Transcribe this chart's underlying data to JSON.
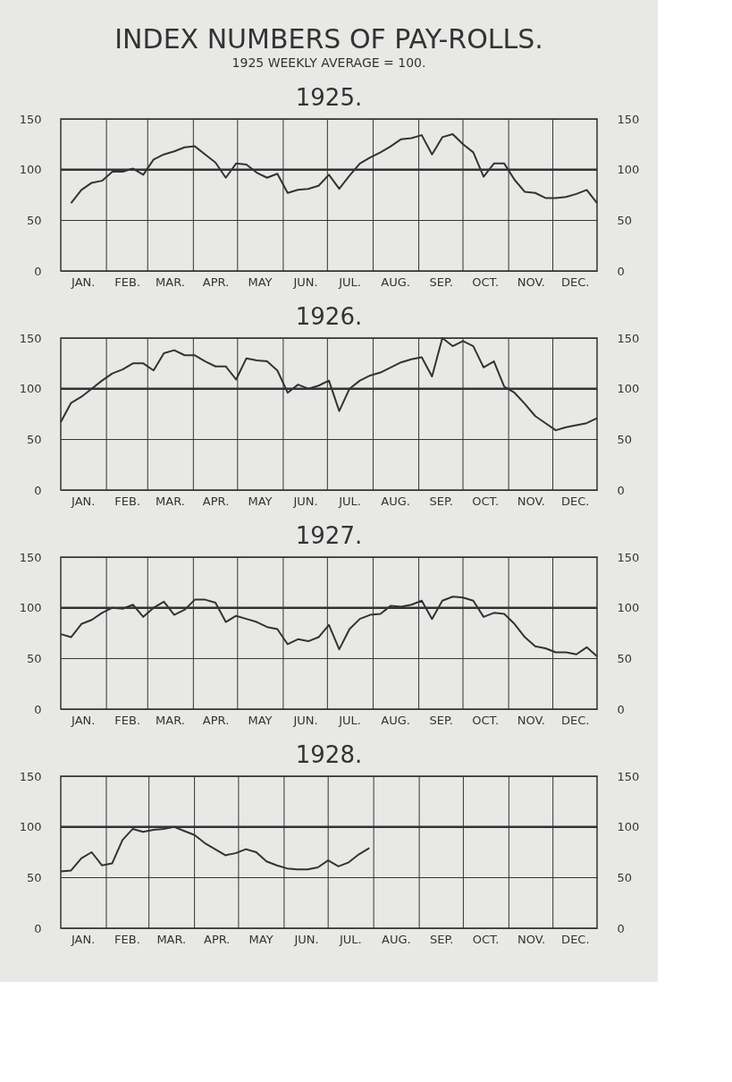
{
  "chart_data": [
    {
      "type": "other",
      "title": "INDEX NUMBERS OF PAY-ROLLS.",
      "subtitle": "1925 WEEKLY AVERAGE = 100."
    },
    {
      "type": "line",
      "title": "1925.",
      "series": [
        {
          "color": "#333333",
          "x": [
            "1925-01-08",
            "1925-01-15",
            "1925-01-22",
            "1925-01-29",
            "1925-02-05",
            "1925-02-12",
            "1925-02-19",
            "1925-02-26",
            "1925-03-05",
            "1925-03-12",
            "1925-03-19",
            "1925-03-26",
            "1925-04-02",
            "1925-04-09",
            "1925-04-16",
            "1925-04-23",
            "1925-04-30",
            "1925-05-07",
            "1925-05-14",
            "1925-05-21",
            "1925-05-28",
            "1925-06-04",
            "1925-06-11",
            "1925-06-18",
            "1925-06-25",
            "1925-07-02",
            "1925-07-09",
            "1925-07-16",
            "1925-07-23",
            "1925-07-30",
            "1925-08-06",
            "1925-08-13",
            "1925-08-20",
            "1925-08-27",
            "1925-09-03",
            "1925-09-10",
            "1925-09-17",
            "1925-09-24",
            "1925-10-01",
            "1925-10-08",
            "1925-10-15",
            "1925-10-22",
            "1925-10-29",
            "1925-11-05",
            "1925-11-12",
            "1925-11-19",
            "1925-11-26",
            "1925-12-03",
            "1925-12-10",
            "1925-12-17",
            "1925-12-24",
            "1925-12-31"
          ],
          "values": [
            67,
            80,
            87,
            89,
            98,
            98,
            101,
            95,
            110,
            115,
            118,
            122,
            123,
            115,
            107,
            92,
            106,
            105,
            97,
            92,
            96,
            77,
            80,
            81,
            84,
            95,
            81,
            94,
            106,
            112,
            117,
            123,
            130,
            131,
            134,
            115,
            132,
            135,
            125,
            117,
            93,
            106,
            106,
            90,
            78,
            77,
            72,
            72,
            73,
            76,
            80,
            67
          ]
        }
      ],
      "xlim": [
        "1925-01-01",
        "1925-12-31"
      ],
      "xticks": [
        {
          "value": "1925-01-16",
          "label": "JAN."
        },
        {
          "value": "1925-02-15",
          "label": "FEB."
        },
        {
          "value": "1925-03-16",
          "label": "MAR."
        },
        {
          "value": "1925-04-16",
          "label": "APR."
        },
        {
          "value": "1925-05-16",
          "label": "MAY"
        },
        {
          "value": "1925-06-16",
          "label": "JUN."
        },
        {
          "value": "1925-07-16",
          "label": "JUL."
        },
        {
          "value": "1925-08-16",
          "label": "AUG."
        },
        {
          "value": "1925-09-16",
          "label": "SEP."
        },
        {
          "value": "1925-10-16",
          "label": "OCT."
        },
        {
          "value": "1925-11-16",
          "label": "NOV."
        },
        {
          "value": "1925-12-16",
          "label": "DEC."
        }
      ],
      "ylim": [
        0,
        150
      ],
      "yticks": [
        0,
        50,
        100,
        150
      ],
      "y2lim": [
        0,
        150
      ],
      "y2ticks": [
        0,
        50,
        100,
        150
      ],
      "grid": "y",
      "ref_lines": [
        {
          "axis": "y",
          "value": 100
        },
        {
          "axis": "x",
          "value": "1925-02-01"
        },
        {
          "axis": "x",
          "value": "1925-03-01"
        },
        {
          "axis": "x",
          "value": "1925-04-01"
        },
        {
          "axis": "x",
          "value": "1925-05-01"
        },
        {
          "axis": "x",
          "value": "1925-06-01"
        },
        {
          "axis": "x",
          "value": "1925-07-01"
        },
        {
          "axis": "x",
          "value": "1925-08-01"
        },
        {
          "axis": "x",
          "value": "1925-09-01"
        },
        {
          "axis": "x",
          "value": "1925-10-01"
        },
        {
          "axis": "x",
          "value": "1925-11-01"
        },
        {
          "axis": "x",
          "value": "1925-12-01"
        }
      ]
    },
    {
      "type": "line",
      "title": "1926.",
      "x": [
        "1926-01-01",
        "1926-01-08",
        "1926-01-15",
        "1926-01-22",
        "1926-01-29",
        "1926-02-05",
        "1926-02-12",
        "1926-02-19",
        "1926-02-26",
        "1926-03-05",
        "1926-03-12",
        "1926-03-19",
        "1926-03-26",
        "1926-04-02",
        "1926-04-09",
        "1926-04-16",
        "1926-04-23",
        "1926-04-30",
        "1926-05-07",
        "1926-05-14",
        "1926-05-21",
        "1926-05-28",
        "1926-06-04",
        "1926-06-11",
        "1926-06-18",
        "1926-06-25",
        "1926-07-02",
        "1926-07-09",
        "1926-07-16",
        "1926-07-23",
        "1926-07-30",
        "1926-08-06",
        "1926-08-13",
        "1926-08-20",
        "1926-08-27",
        "1926-09-03",
        "1926-09-10",
        "1926-09-17",
        "1926-09-24",
        "1926-10-01",
        "1926-10-08",
        "1926-10-15",
        "1926-10-22",
        "1926-10-29",
        "1926-11-05",
        "1926-11-12",
        "1926-11-19",
        "1926-11-26",
        "1926-12-03",
        "1926-12-10",
        "1926-12-17",
        "1926-12-24",
        "1926-12-31"
      ],
      "series": [
        {
          "color": "#333333",
          "values": [
            67,
            86,
            92,
            100,
            108,
            115,
            119,
            125,
            125,
            118,
            135,
            138,
            133,
            133,
            127,
            122,
            122,
            109,
            130,
            128,
            127,
            118,
            96,
            104,
            100,
            103,
            108,
            78,
            100,
            108,
            113,
            116,
            121,
            126,
            129,
            131,
            112,
            150,
            142,
            147,
            142,
            121,
            127,
            102,
            96,
            85,
            73,
            66,
            59,
            62,
            64,
            66,
            71
          ]
        }
      ],
      "xlim": [
        "1926-01-01",
        "1926-12-31"
      ],
      "xticks": [
        {
          "value": "1926-01-16",
          "label": "JAN."
        },
        {
          "value": "1926-02-15",
          "label": "FEB."
        },
        {
          "value": "1926-03-16",
          "label": "MAR."
        },
        {
          "value": "1926-04-16",
          "label": "APR."
        },
        {
          "value": "1926-05-16",
          "label": "MAY"
        },
        {
          "value": "1926-06-16",
          "label": "JUN."
        },
        {
          "value": "1926-07-16",
          "label": "JUL."
        },
        {
          "value": "1926-08-16",
          "label": "AUG."
        },
        {
          "value": "1926-09-16",
          "label": "SEP."
        },
        {
          "value": "1926-10-16",
          "label": "OCT."
        },
        {
          "value": "1926-11-16",
          "label": "NOV."
        },
        {
          "value": "1926-12-16",
          "label": "DEC."
        }
      ],
      "ylim": [
        0,
        150
      ],
      "yticks": [
        0,
        50,
        100,
        150
      ],
      "y2lim": [
        0,
        150
      ],
      "y2ticks": [
        0,
        50,
        100,
        150
      ],
      "grid": "y",
      "ref_lines": [
        {
          "axis": "y",
          "value": 100
        },
        {
          "axis": "x",
          "value": "1926-02-01"
        },
        {
          "axis": "x",
          "value": "1926-03-01"
        },
        {
          "axis": "x",
          "value": "1926-04-01"
        },
        {
          "axis": "x",
          "value": "1926-05-01"
        },
        {
          "axis": "x",
          "value": "1926-06-01"
        },
        {
          "axis": "x",
          "value": "1926-07-01"
        },
        {
          "axis": "x",
          "value": "1926-08-01"
        },
        {
          "axis": "x",
          "value": "1926-09-01"
        },
        {
          "axis": "x",
          "value": "1926-10-01"
        },
        {
          "axis": "x",
          "value": "1926-11-01"
        },
        {
          "axis": "x",
          "value": "1926-12-01"
        }
      ]
    },
    {
      "type": "line",
      "title": "1927.",
      "x": [
        "1927-01-01",
        "1927-01-08",
        "1927-01-15",
        "1927-01-22",
        "1927-01-29",
        "1927-02-05",
        "1927-02-12",
        "1927-02-19",
        "1927-02-26",
        "1927-03-05",
        "1927-03-12",
        "1927-03-19",
        "1927-03-26",
        "1927-04-02",
        "1927-04-09",
        "1927-04-16",
        "1927-04-23",
        "1927-04-30",
        "1927-05-07",
        "1927-05-14",
        "1927-05-21",
        "1927-05-28",
        "1927-06-04",
        "1927-06-11",
        "1927-06-18",
        "1927-06-25",
        "1927-07-02",
        "1927-07-09",
        "1927-07-16",
        "1927-07-23",
        "1927-07-30",
        "1927-08-06",
        "1927-08-13",
        "1927-08-20",
        "1927-08-27",
        "1927-09-03",
        "1927-09-10",
        "1927-09-17",
        "1927-09-24",
        "1927-10-01",
        "1927-10-08",
        "1927-10-15",
        "1927-10-22",
        "1927-10-29",
        "1927-11-05",
        "1927-11-12",
        "1927-11-19",
        "1927-11-26",
        "1927-12-03",
        "1927-12-10",
        "1927-12-17",
        "1927-12-24",
        "1927-12-31"
      ],
      "series": [
        {
          "color": "#333333",
          "values": [
            74,
            71,
            84,
            88,
            95,
            100,
            99,
            103,
            91,
            100,
            106,
            93,
            98,
            108,
            108,
            105,
            86,
            92,
            89,
            86,
            81,
            79,
            64,
            69,
            67,
            71,
            83,
            59,
            79,
            89,
            93,
            94,
            102,
            101,
            103,
            107,
            89,
            107,
            111,
            110,
            107,
            91,
            95,
            94,
            84,
            71,
            62,
            60,
            56,
            56,
            54,
            61,
            52
          ]
        }
      ],
      "xlim": [
        "1927-01-01",
        "1927-12-31"
      ],
      "xticks": [
        {
          "value": "1927-01-16",
          "label": "JAN."
        },
        {
          "value": "1927-02-15",
          "label": "FEB."
        },
        {
          "value": "1927-03-16",
          "label": "MAR."
        },
        {
          "value": "1927-04-16",
          "label": "APR."
        },
        {
          "value": "1927-05-16",
          "label": "MAY"
        },
        {
          "value": "1927-06-16",
          "label": "JUN."
        },
        {
          "value": "1927-07-16",
          "label": "JUL."
        },
        {
          "value": "1927-08-16",
          "label": "AUG."
        },
        {
          "value": "1927-09-16",
          "label": "SEP."
        },
        {
          "value": "1927-10-16",
          "label": "OCT."
        },
        {
          "value": "1927-11-16",
          "label": "NOV."
        },
        {
          "value": "1927-12-16",
          "label": "DEC."
        }
      ],
      "ylim": [
        0,
        150
      ],
      "yticks": [
        0,
        50,
        100,
        150
      ],
      "y2lim": [
        0,
        150
      ],
      "y2ticks": [
        0,
        50,
        100,
        150
      ],
      "grid": "y",
      "ref_lines": [
        {
          "axis": "y",
          "value": 100
        },
        {
          "axis": "x",
          "value": "1927-02-01"
        },
        {
          "axis": "x",
          "value": "1927-03-01"
        },
        {
          "axis": "x",
          "value": "1927-04-01"
        },
        {
          "axis": "x",
          "value": "1927-05-01"
        },
        {
          "axis": "x",
          "value": "1927-06-01"
        },
        {
          "axis": "x",
          "value": "1927-07-01"
        },
        {
          "axis": "x",
          "value": "1927-08-01"
        },
        {
          "axis": "x",
          "value": "1927-09-01"
        },
        {
          "axis": "x",
          "value": "1927-10-01"
        },
        {
          "axis": "x",
          "value": "1927-11-01"
        },
        {
          "axis": "x",
          "value": "1927-12-01"
        }
      ]
    },
    {
      "type": "line",
      "title": "1928.",
      "series": [
        {
          "color": "#333333",
          "x": [
            "1928-01-01",
            "1928-01-08",
            "1928-01-15",
            "1928-01-22",
            "1928-01-29",
            "1928-02-05",
            "1928-02-12",
            "1928-02-19",
            "1928-02-26",
            "1928-03-04",
            "1928-03-11",
            "1928-03-18",
            "1928-03-25",
            "1928-04-01",
            "1928-04-08",
            "1928-04-15",
            "1928-04-22",
            "1928-04-29",
            "1928-05-06",
            "1928-05-13",
            "1928-05-20",
            "1928-05-27",
            "1928-06-03",
            "1928-06-10",
            "1928-06-17",
            "1928-06-24",
            "1928-07-01",
            "1928-07-08",
            "1928-07-15",
            "1928-07-22",
            "1928-07-29"
          ],
          "values": [
            56,
            57,
            69,
            75,
            62,
            64,
            87,
            98,
            95,
            97,
            98,
            100,
            96,
            92,
            84,
            78,
            72,
            74,
            78,
            75,
            66,
            62,
            59,
            58,
            58,
            60,
            67,
            61,
            65,
            73,
            79
          ]
        }
      ],
      "xlim": [
        "1928-01-01",
        "1928-12-31"
      ],
      "xticks": [
        {
          "value": "1928-01-16",
          "label": "JAN."
        },
        {
          "value": "1928-02-15",
          "label": "FEB."
        },
        {
          "value": "1928-03-16",
          "label": "MAR."
        },
        {
          "value": "1928-04-16",
          "label": "APR."
        },
        {
          "value": "1928-05-16",
          "label": "MAY"
        },
        {
          "value": "1928-06-16",
          "label": "JUN."
        },
        {
          "value": "1928-07-16",
          "label": "JUL."
        },
        {
          "value": "1928-08-16",
          "label": "AUG."
        },
        {
          "value": "1928-09-16",
          "label": "SEP."
        },
        {
          "value": "1928-10-16",
          "label": "OCT."
        },
        {
          "value": "1928-11-16",
          "label": "NOV."
        },
        {
          "value": "1928-12-16",
          "label": "DEC."
        }
      ],
      "ylim": [
        0,
        150
      ],
      "yticks": [
        0,
        50,
        100,
        150
      ],
      "y2lim": [
        0,
        150
      ],
      "y2ticks": [
        0,
        50,
        100,
        150
      ],
      "grid": "y",
      "ref_lines": [
        {
          "axis": "y",
          "value": 100
        },
        {
          "axis": "x",
          "value": "1928-02-01"
        },
        {
          "axis": "x",
          "value": "1928-03-01"
        },
        {
          "axis": "x",
          "value": "1928-04-01"
        },
        {
          "axis": "x",
          "value": "1928-05-01"
        },
        {
          "axis": "x",
          "value": "1928-06-01"
        },
        {
          "axis": "x",
          "value": "1928-07-01"
        },
        {
          "axis": "x",
          "value": "1928-08-01"
        },
        {
          "axis": "x",
          "value": "1928-09-01"
        },
        {
          "axis": "x",
          "value": "1928-10-01"
        },
        {
          "axis": "x",
          "value": "1928-11-01"
        },
        {
          "axis": "x",
          "value": "1928-12-01"
        }
      ]
    }
  ]
}
